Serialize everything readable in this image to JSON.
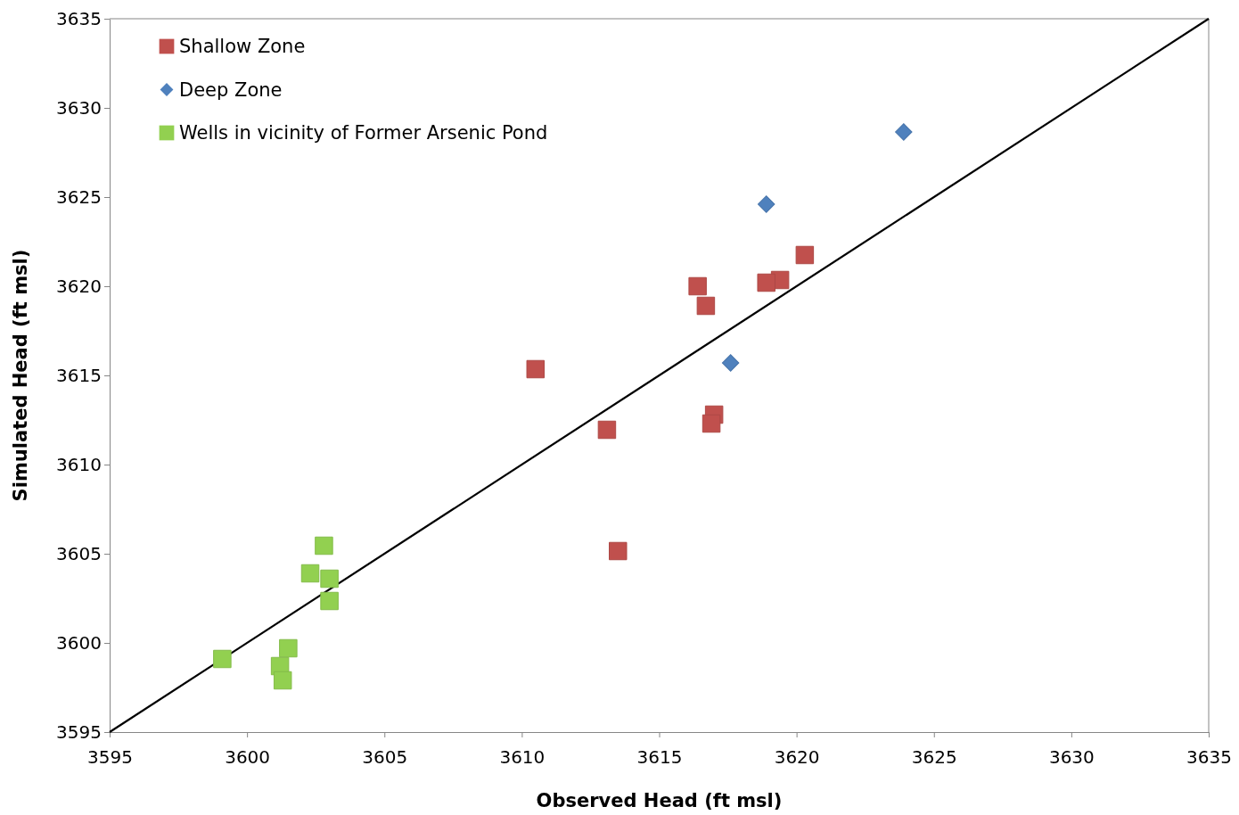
{
  "chart_data": {
    "type": "scatter",
    "xlabel": "Observed Head (ft msl)",
    "ylabel": "Simulated Head (ft msl)",
    "xlim": [
      3595,
      3635
    ],
    "ylim": [
      3595,
      3635
    ],
    "xticks": [
      3595,
      3600,
      3605,
      3610,
      3615,
      3620,
      3625,
      3630,
      3635
    ],
    "yticks": [
      3595,
      3600,
      3605,
      3610,
      3615,
      3620,
      3625,
      3630,
      3635
    ],
    "grid": false,
    "legend": "top left",
    "series": [
      {
        "name": "Shallow Zone",
        "color": "#c0504d",
        "marker": "square",
        "x": [
          3620.3,
          3619.4,
          3618.9,
          3616.4,
          3616.7,
          3610.5,
          3613.1,
          3617.0,
          3616.9,
          3613.5
        ],
        "values": [
          3621.75,
          3620.35,
          3620.2,
          3620.0,
          3618.9,
          3615.35,
          3611.95,
          3612.8,
          3612.3,
          3605.15
        ]
      },
      {
        "name": "Deep Zone",
        "color": "#4f81bd",
        "marker": "diamond",
        "x": [
          3623.9,
          3618.9,
          3617.6
        ],
        "values": [
          3628.65,
          3624.6,
          3615.7
        ]
      },
      {
        "name": "Wells in vicinity of Former Arsenic Pond",
        "color": "#92d050",
        "marker": "square",
        "x": [
          3602.8,
          3602.3,
          3603.0,
          3603.0,
          3601.5,
          3599.1,
          3601.2,
          3601.3
        ],
        "values": [
          3605.45,
          3603.9,
          3603.6,
          3602.35,
          3599.7,
          3599.1,
          3598.7,
          3597.9
        ]
      },
      {
        "type": "line",
        "color": "#000000",
        "marker": "none",
        "line_style": "solid",
        "x": [
          3595,
          3635
        ],
        "values": [
          3595,
          3635
        ]
      }
    ]
  }
}
